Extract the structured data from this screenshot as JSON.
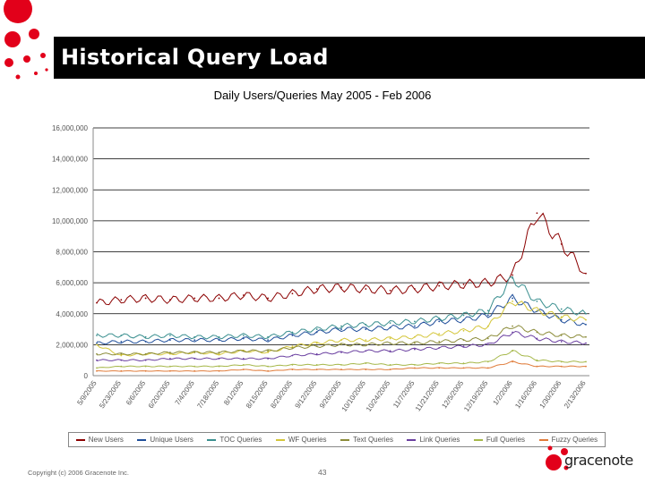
{
  "slide": {
    "title": "Historical Query Load",
    "footer_copyright": "Copyright (c) 2006 Gracenote Inc.",
    "page_number": "43",
    "logo_text": "gracenote"
  },
  "colors": {
    "accent_red": "#e2001a",
    "banner_black": "#000000"
  },
  "chart_data": {
    "type": "line",
    "title": "Daily Users/Queries May 2005 - Feb 2006",
    "xlabel": "",
    "ylabel": "",
    "ylim": [
      0,
      16000000
    ],
    "yticks": [
      0,
      2000000,
      4000000,
      6000000,
      8000000,
      10000000,
      12000000,
      14000000,
      16000000
    ],
    "ytick_labels": [
      "0",
      "2,000,000",
      "4,000,000",
      "6,000,000",
      "8,000,000",
      "10,000,000",
      "12,000,000",
      "14,000,000",
      "16,000,000"
    ],
    "xtick_labels": [
      "5/9/2005",
      "5/23/2005",
      "6/6/2005",
      "6/20/2005",
      "7/4/2005",
      "7/18/2005",
      "8/1/2005",
      "8/15/2005",
      "8/29/2005",
      "9/12/2005",
      "9/26/2005",
      "10/10/2005",
      "10/24/2005",
      "11/7/2005",
      "11/21/2005",
      "12/5/2005",
      "12/19/2005",
      "1/2/2006",
      "1/16/2006",
      "1/30/2006",
      "2/13/2006"
    ],
    "grid": true,
    "legend_position": "bottom",
    "series": [
      {
        "name": "New Users",
        "color": "#8b0000",
        "values": [
          4.7,
          4.9,
          5.0,
          4.9,
          5.0,
          5.0,
          5.2,
          5.0,
          5.3,
          5.6,
          5.7,
          5.6,
          5.5,
          5.6,
          5.8,
          5.9,
          6.0,
          6.5,
          10.5,
          8.5,
          6.6
        ]
      },
      {
        "name": "Unique Users",
        "color": "#1f4e9a",
        "values": [
          2.1,
          2.2,
          2.2,
          2.3,
          2.3,
          2.3,
          2.4,
          2.3,
          2.6,
          2.8,
          3.0,
          3.0,
          3.1,
          3.2,
          3.5,
          3.6,
          3.9,
          5.0,
          4.2,
          3.6,
          3.3
        ]
      },
      {
        "name": "TOC Queries",
        "color": "#3a8f8f",
        "values": [
          2.6,
          2.6,
          2.5,
          2.6,
          2.5,
          2.5,
          2.6,
          2.5,
          2.8,
          3.0,
          3.2,
          3.3,
          3.4,
          3.5,
          3.7,
          3.9,
          4.2,
          6.3,
          4.8,
          4.3,
          4.0
        ]
      },
      {
        "name": "WF Queries",
        "color": "#d4c63a",
        "values": [
          2.0,
          1.3,
          1.4,
          1.4,
          1.5,
          1.4,
          1.6,
          1.5,
          1.9,
          2.1,
          2.3,
          2.3,
          2.4,
          2.5,
          2.7,
          2.9,
          3.2,
          4.8,
          4.2,
          3.8,
          3.6
        ]
      },
      {
        "name": "Text Queries",
        "color": "#8c8c3a",
        "values": [
          1.4,
          1.4,
          1.4,
          1.5,
          1.5,
          1.5,
          1.6,
          1.6,
          1.8,
          1.9,
          2.0,
          2.0,
          2.1,
          2.1,
          2.2,
          2.3,
          2.4,
          3.2,
          2.8,
          2.6,
          2.5
        ]
      },
      {
        "name": "Link Queries",
        "color": "#6a3fa0",
        "values": [
          1.0,
          1.0,
          1.0,
          1.1,
          1.1,
          1.1,
          1.1,
          1.1,
          1.3,
          1.4,
          1.5,
          1.6,
          1.6,
          1.7,
          1.8,
          1.9,
          2.0,
          2.8,
          2.4,
          2.2,
          2.1
        ]
      },
      {
        "name": "Full Queries",
        "color": "#a6b84a",
        "values": [
          0.5,
          0.6,
          0.6,
          0.6,
          0.6,
          0.6,
          0.7,
          0.6,
          0.7,
          0.7,
          0.7,
          0.8,
          0.7,
          0.7,
          0.8,
          0.8,
          0.9,
          1.6,
          1.0,
          0.9,
          0.9
        ]
      },
      {
        "name": "Fuzzy Queries",
        "color": "#e07b39",
        "values": [
          0.3,
          0.3,
          0.3,
          0.3,
          0.3,
          0.3,
          0.4,
          0.3,
          0.4,
          0.4,
          0.4,
          0.4,
          0.4,
          0.5,
          0.5,
          0.5,
          0.5,
          0.9,
          0.6,
          0.6,
          0.6
        ]
      }
    ],
    "value_unit": "millions"
  }
}
